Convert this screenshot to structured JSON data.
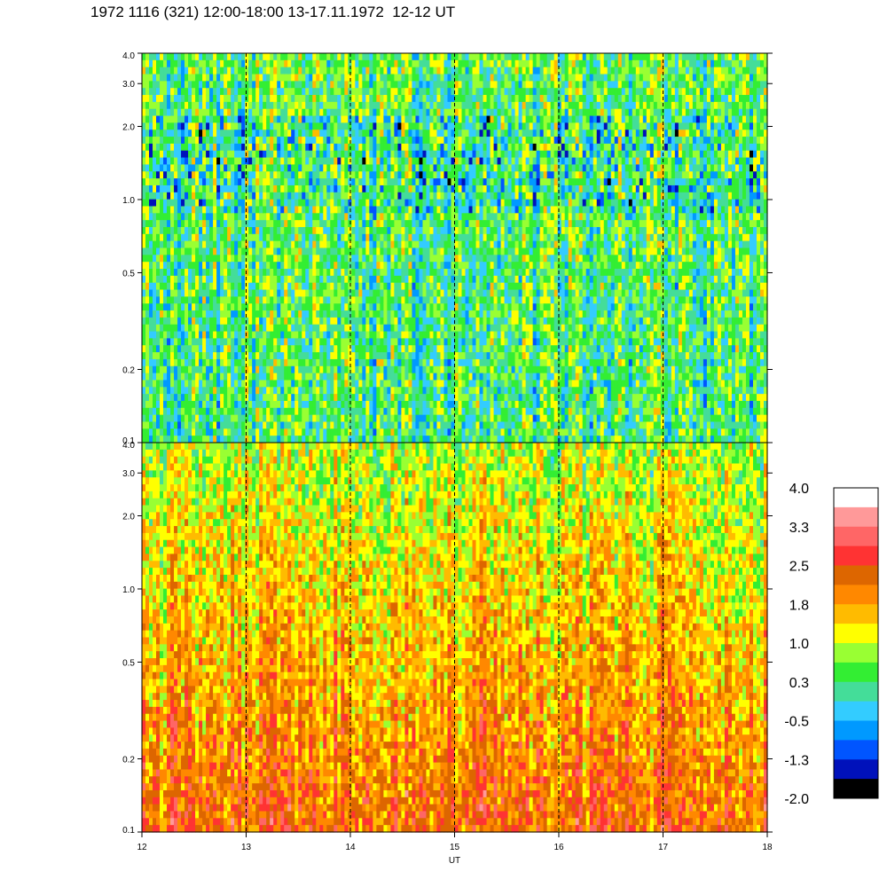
{
  "title": "1972 1116 (321) 12:00-18:00 13-17.11.1972  12-12 UT",
  "chart_data": [
    {
      "type": "heatmap",
      "panel": "top",
      "x_range": [
        12,
        18
      ],
      "y_scale": "log",
      "y_range": [
        0.1,
        4.0
      ],
      "y_ticks": [
        "0.1",
        "0.2",
        "0.5",
        "1.0",
        "2.0",
        "3.0",
        "4.0"
      ],
      "day_boundaries_ut": [
        13,
        14,
        15,
        16,
        17
      ],
      "dominant_levels": [
        "green",
        "cyan",
        "blue"
      ],
      "level_mean": 0.15
    },
    {
      "type": "heatmap",
      "panel": "bottom",
      "x_range": [
        12,
        18
      ],
      "y_scale": "log",
      "y_range": [
        0.1,
        4.0
      ],
      "y_ticks": [
        "0.1",
        "0.2",
        "0.5",
        "1.0",
        "2.0",
        "3.0",
        "4.0"
      ],
      "x_ticks": [
        "12",
        "13",
        "14",
        "15",
        "16",
        "17",
        "18"
      ],
      "xlabel": "UT",
      "day_boundaries_ut": [
        13,
        14,
        15,
        16,
        17
      ],
      "dominant_levels": [
        "orange",
        "yellow",
        "green"
      ],
      "level_mean": 1.5
    }
  ],
  "colorbar": {
    "range": [
      -2.0,
      4.0
    ],
    "labels": [
      "4.0",
      "3.3",
      "2.5",
      "1.8",
      "1.0",
      "0.3",
      "-0.5",
      "-1.3",
      "-2.0"
    ],
    "colors": [
      "#ffffff",
      "#ff9999",
      "#ff6666",
      "#ff3333",
      "#dd6600",
      "#ff8800",
      "#ffbb00",
      "#ffff00",
      "#99ff33",
      "#33ee33",
      "#44dd99",
      "#33ccff",
      "#0099ff",
      "#0055ff",
      "#0011bb",
      "#000000"
    ]
  }
}
